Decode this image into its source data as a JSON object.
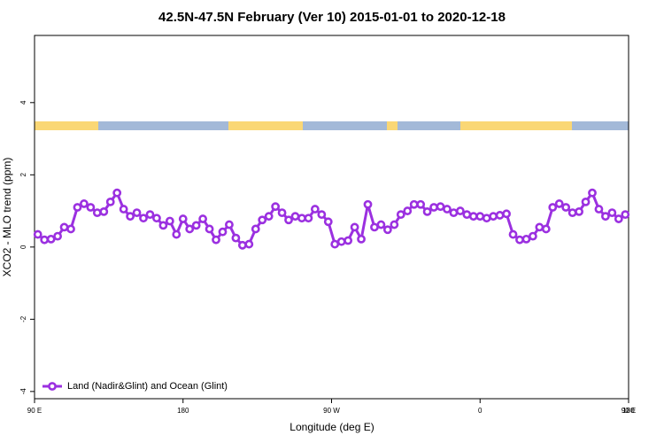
{
  "chart_data": {
    "type": "line",
    "title": "42.5N-47.5N February (Ver 10)   2015-01-01 to 2020-12-18",
    "xlabel": "Longitude (deg E)",
    "ylabel": "XCO2 - MLO trend (ppm)",
    "legend": "bottom-left",
    "x": [
      92,
      96,
      100,
      104,
      108,
      112,
      116,
      120,
      124,
      128,
      132,
      136,
      140,
      144,
      148,
      152,
      156,
      160,
      164,
      168,
      172,
      176,
      180,
      184,
      188,
      192,
      196,
      200,
      204,
      208,
      212,
      216,
      220,
      224,
      228,
      232,
      236,
      240,
      244,
      248,
      252,
      256,
      260,
      264,
      268,
      272,
      276,
      280,
      284,
      288,
      292,
      296,
      300,
      304,
      308,
      312,
      316,
      320,
      324,
      328,
      332,
      336,
      340,
      344,
      348,
      352,
      356,
      360,
      364,
      368,
      372,
      376,
      380,
      384,
      388,
      392,
      396,
      400,
      404,
      408,
      412,
      416,
      420,
      424,
      428,
      432,
      436,
      440,
      444,
      448
    ],
    "series": [
      {
        "name": "Land (Nadir&Glint) and Ocean (Glint)",
        "color": "#9b30e0",
        "values": [
          0.35,
          0.2,
          0.22,
          0.3,
          0.55,
          0.5,
          1.1,
          1.2,
          1.1,
          0.95,
          0.98,
          1.25,
          1.5,
          1.05,
          0.85,
          0.95,
          0.8,
          0.9,
          0.8,
          0.6,
          0.72,
          0.35,
          0.78,
          0.5,
          0.6,
          0.78,
          0.5,
          0.2,
          0.42,
          0.62,
          0.25,
          0.05,
          0.08,
          0.5,
          0.75,
          0.85,
          1.12,
          0.95,
          0.75,
          0.85,
          0.8,
          0.8,
          1.05,
          0.9,
          0.7,
          0.08,
          0.15,
          0.18,
          0.55,
          0.22,
          1.18,
          0.55,
          0.62,
          0.48,
          0.62,
          0.9,
          1.0,
          1.18,
          1.18,
          0.98,
          1.1,
          1.12,
          1.05,
          0.95,
          1.0,
          0.9,
          0.85,
          0.85,
          0.8,
          0.85,
          0.88,
          0.92,
          0.35,
          0.2,
          0.22,
          0.3,
          0.55,
          0.5,
          1.1,
          1.2,
          1.1,
          0.95,
          0.98,
          1.25,
          1.5,
          1.05,
          0.85,
          0.95,
          0.78,
          0.9
        ]
      }
    ],
    "xlim": [
      90,
      450
    ],
    "xticks": [
      {
        "value": 90,
        "label": "90 E"
      },
      180,
      {
        "value": 270,
        "label": "90 W"
      },
      {
        "value": 360,
        "label": "0"
      },
      {
        "value": 450,
        "label": "90 E"
      },
      {
        "value": 540,
        "label": "180"
      }
    ],
    "ylim": [
      -4.2,
      5.86
    ],
    "yticks": [
      -4,
      -2,
      0,
      2,
      4
    ]
  }
}
